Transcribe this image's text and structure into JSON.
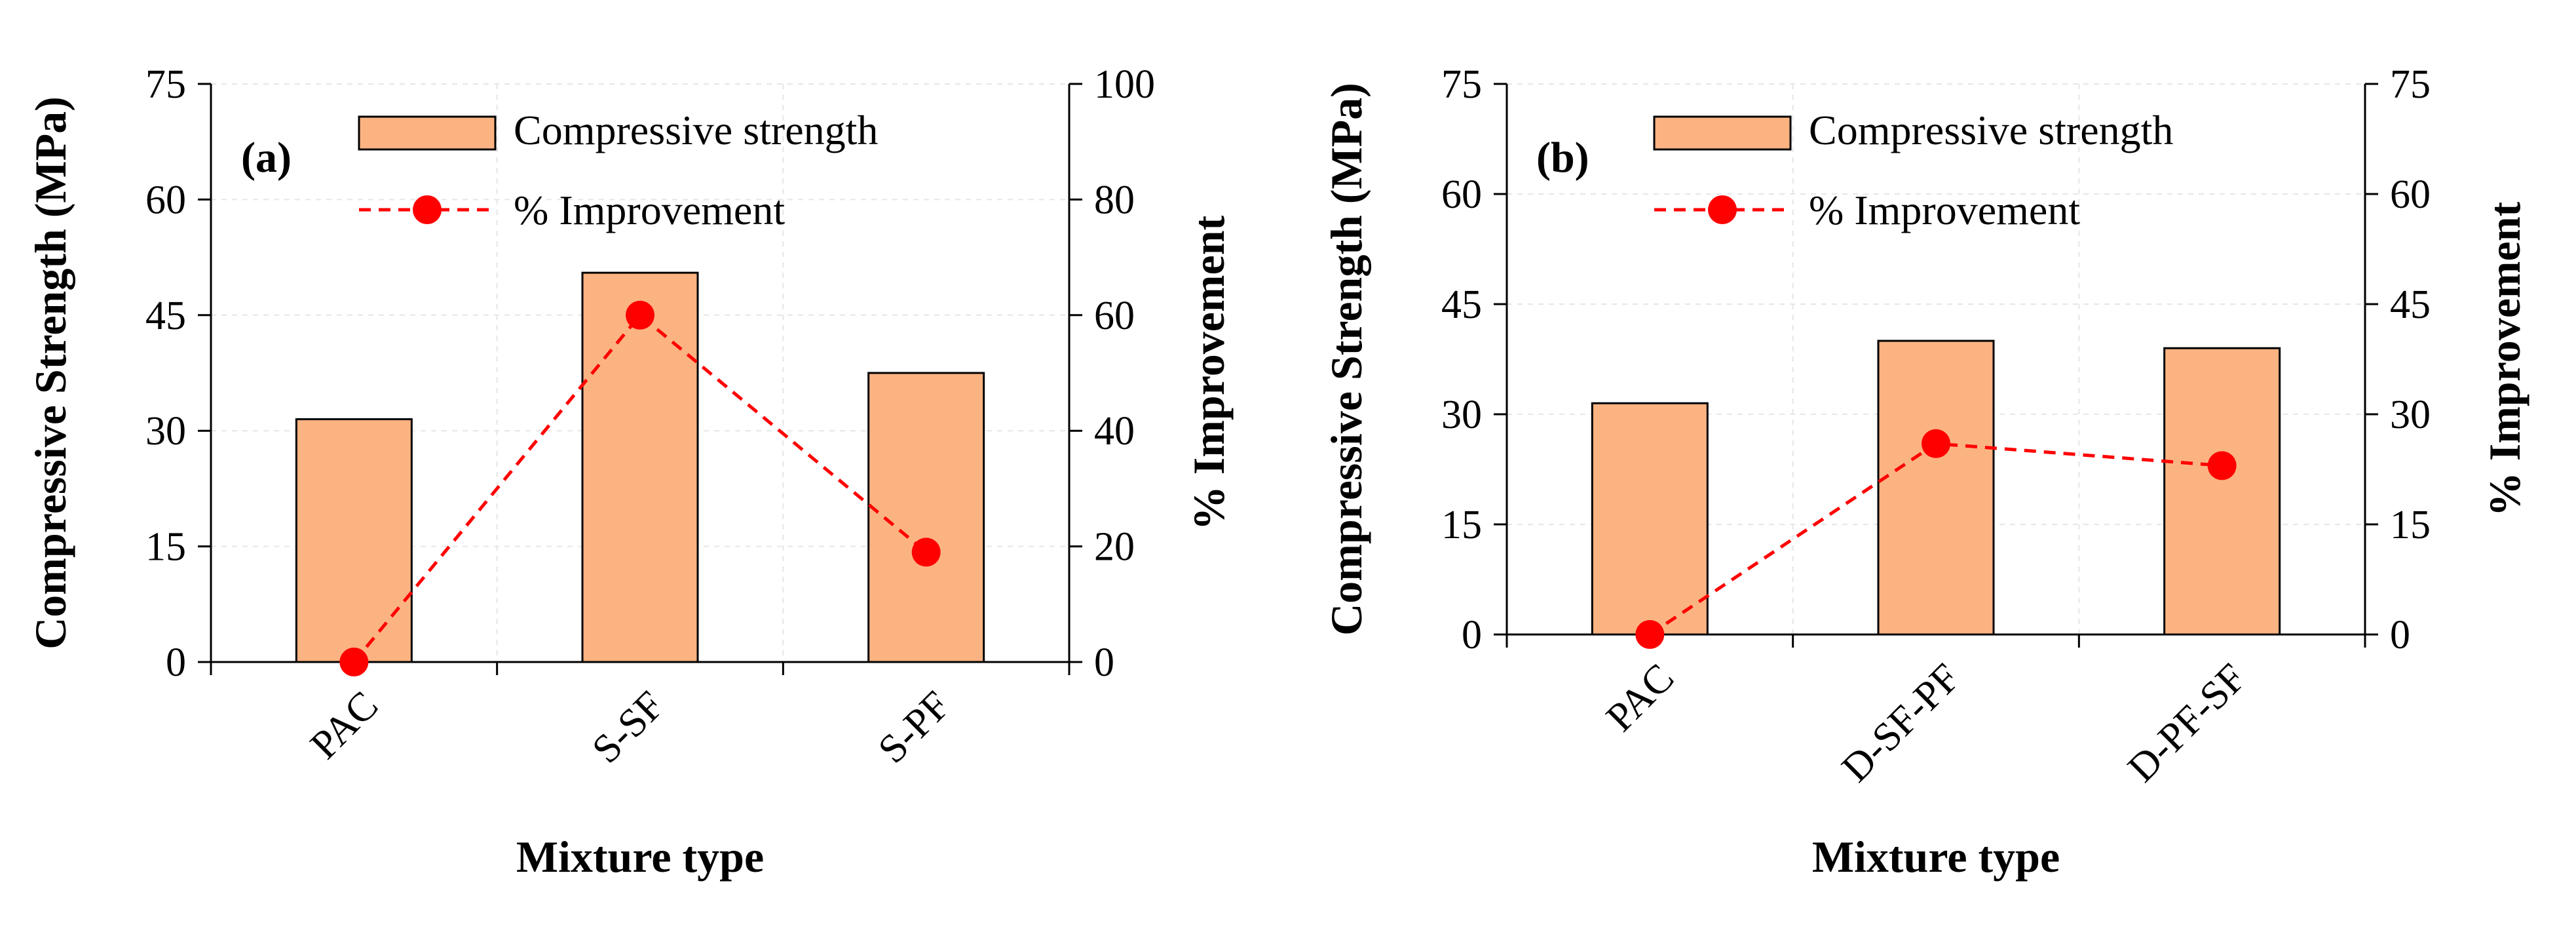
{
  "colors": {
    "bar_fill": "#FCB382",
    "bar_stroke": "#000000",
    "line": "#FF0000",
    "grid": "#E6E6E6"
  },
  "chart_data": [
    {
      "type": "bar",
      "panel_label": "(a)",
      "categories": [
        "PAC",
        "S-SF",
        "S-PF"
      ],
      "xlabel": "Mixture type",
      "ylabel": "Compressive Strength (MPa)",
      "y2label": "% Improvement",
      "ylim": [
        0,
        75
      ],
      "yticks": [
        0,
        15,
        30,
        45,
        60,
        75
      ],
      "y2lim": [
        0,
        100
      ],
      "y2ticks": [
        0,
        20,
        40,
        60,
        80,
        100
      ],
      "grid": true,
      "legend_position": "top-center",
      "series": [
        {
          "name": "Compressive strength",
          "kind": "bar",
          "axis": "left",
          "values": [
            31.5,
            50.5,
            37.5
          ]
        },
        {
          "name": "% Improvement",
          "kind": "line",
          "axis": "right",
          "style": "dashed",
          "marker": "circle",
          "values": [
            0,
            60,
            19
          ]
        }
      ]
    },
    {
      "type": "bar",
      "panel_label": "(b)",
      "categories": [
        "PAC",
        "D-SF-PF",
        "D-PF-SF"
      ],
      "xlabel": "Mixture type",
      "ylabel": "Compressive Strength (MPa)",
      "y2label": "% Improvement",
      "ylim": [
        0,
        75
      ],
      "yticks": [
        0,
        15,
        30,
        45,
        60,
        75
      ],
      "y2lim": [
        0,
        75
      ],
      "y2ticks": [
        0,
        15,
        30,
        45,
        60,
        75
      ],
      "grid": true,
      "legend_position": "top-center",
      "series": [
        {
          "name": "Compressive strength",
          "kind": "bar",
          "axis": "left",
          "values": [
            31.5,
            40,
            39
          ]
        },
        {
          "name": "% Improvement",
          "kind": "line",
          "axis": "right",
          "style": "dashed",
          "marker": "circle",
          "values": [
            0,
            26,
            23
          ]
        }
      ]
    }
  ]
}
